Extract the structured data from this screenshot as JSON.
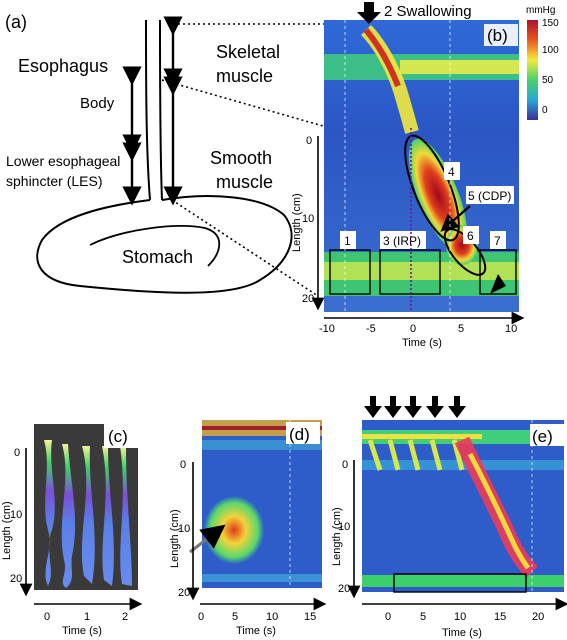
{
  "panel_a": {
    "letter": "(a)",
    "esophagus": "Esophagus",
    "body": "Body",
    "les_line1": "Lower esophageal",
    "les_line2": "sphincter (LES)",
    "skeletal_line1": "Skeletal",
    "skeletal_line2": "muscle",
    "smooth_line1": "Smooth",
    "smooth_line2": "muscle",
    "stomach": "Stomach"
  },
  "panel_b": {
    "letter": "(b)",
    "swallow_label": "2 Swallowing",
    "colorbar_unit": "mmHg",
    "colorbar_ticks": [
      "150",
      "100",
      "50",
      "0"
    ],
    "ylabel": "Length (cm)",
    "yticks": [
      "0",
      "10",
      "20"
    ],
    "xlabel": "Time (s)",
    "xticks": [
      "-10",
      "-5",
      "0",
      "5",
      "10"
    ],
    "boxes": [
      "1",
      "3 (IRP)",
      "4",
      "5 (CDP)",
      "6",
      "7"
    ]
  },
  "panel_c": {
    "letter": "(c)",
    "ylabel": "Length (cm)",
    "yticks": [
      "0",
      "10",
      "20"
    ],
    "xlabel": "Time (s)",
    "xticks": [
      "0",
      "1",
      "2"
    ]
  },
  "panel_d": {
    "letter": "(d)",
    "ylabel": "Length (cm)",
    "yticks": [
      "0",
      "10",
      "20"
    ],
    "xlabel": "Time (s)",
    "xticks": [
      "0",
      "5",
      "10",
      "15"
    ]
  },
  "panel_e": {
    "letter": "(e)",
    "ylabel": "Length (cm)",
    "yticks": [
      "0",
      "10",
      "20"
    ],
    "xlabel": "Time (s)",
    "xticks": [
      "0",
      "5",
      "10",
      "15",
      "20"
    ]
  },
  "colors": {
    "background_blue": "#2f53c8",
    "green": "#47d36a",
    "yellow": "#f2ef43",
    "red": "#c8142a"
  }
}
